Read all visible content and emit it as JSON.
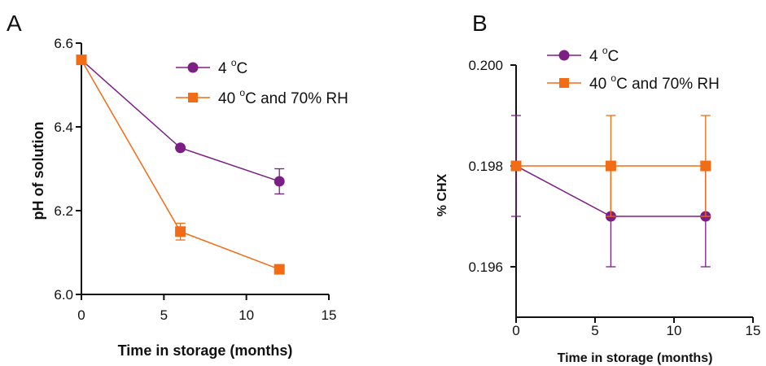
{
  "colors": {
    "series_4C": "#7b1f85",
    "series_40C": "#f26b15",
    "axis": "#111111"
  },
  "chart_data": [
    {
      "panel": "A",
      "type": "line",
      "xlabel": "Time in storage  (months)",
      "ylabel": "pH of solution",
      "xlim": [
        0,
        15
      ],
      "ylim": [
        6.0,
        6.6
      ],
      "xticks": [
        0,
        5,
        10,
        15
      ],
      "xtick_labels": [
        "0",
        "5",
        "10",
        "15"
      ],
      "yticks": [
        6.0,
        6.2,
        6.4,
        6.6
      ],
      "ytick_labels": [
        "6.0",
        "6.2",
        "6.4",
        "6.6"
      ],
      "legend_position": "top-right",
      "series": [
        {
          "key": "s4",
          "name": "4 °C",
          "legend_main": "4 ",
          "legend_sup": "o",
          "legend_tail": "C",
          "marker": "circle",
          "color": "#7b1f85",
          "x": [
            0,
            6,
            12
          ],
          "y": [
            6.56,
            6.35,
            6.27
          ],
          "err": [
            0,
            0,
            0.03
          ]
        },
        {
          "key": "s40",
          "name": "40 °C and 70% RH",
          "legend_main": "40 ",
          "legend_sup": "o",
          "legend_tail": "C and 70% RH",
          "marker": "square",
          "color": "#f26b15",
          "x": [
            0,
            6,
            12
          ],
          "y": [
            6.56,
            6.15,
            6.06
          ],
          "err": [
            0,
            0.02,
            0
          ]
        }
      ]
    },
    {
      "panel": "B",
      "type": "line",
      "xlabel": "Time in storage  (months)",
      "ylabel": "% CHX",
      "xlim": [
        0,
        15
      ],
      "ylim": [
        0.195,
        0.2
      ],
      "xticks": [
        0,
        5,
        10,
        15
      ],
      "xtick_labels": [
        "0",
        "5",
        "10",
        "15"
      ],
      "yticks": [
        0.196,
        0.198,
        0.2
      ],
      "ytick_labels": [
        "0.196",
        "0.198",
        "0.200"
      ],
      "legend_position": "top-right",
      "series": [
        {
          "key": "s4",
          "name": "4 °C",
          "legend_main": "4 ",
          "legend_sup": "o",
          "legend_tail": "C",
          "marker": "circle",
          "color": "#7b1f85",
          "x": [
            0,
            6,
            12
          ],
          "y": [
            0.198,
            0.197,
            0.197
          ],
          "err": [
            0.001,
            0.001,
            0.001
          ]
        },
        {
          "key": "s40",
          "name": "40 °C and 70% RH",
          "legend_main": "40 ",
          "legend_sup": "o",
          "legend_tail": "C and 70% RH",
          "marker": "square",
          "color": "#f26b15",
          "x": [
            0,
            6,
            12
          ],
          "y": [
            0.198,
            0.198,
            0.198
          ],
          "err": [
            0,
            0.001,
            0.001
          ]
        }
      ]
    }
  ]
}
